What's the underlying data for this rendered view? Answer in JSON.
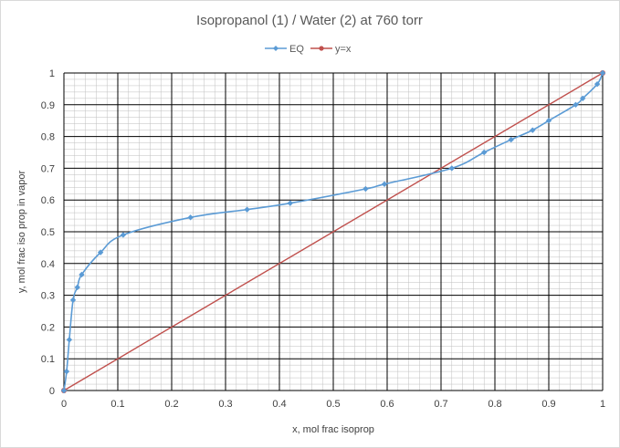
{
  "chart_data": {
    "type": "scatter",
    "title": "Isopropanol (1) / Water (2) at 760 torr",
    "xlabel": "x, mol frac isoprop",
    "ylabel": "y, mol frac iso prop in vapor",
    "xlim": [
      0,
      1
    ],
    "ylim": [
      0,
      1
    ],
    "x_ticks": [
      "0",
      "0.1",
      "0.2",
      "0.3",
      "0.4",
      "0.5",
      "0.6",
      "0.7",
      "0.8",
      "0.9",
      "1"
    ],
    "y_ticks": [
      "0",
      "0.1",
      "0.2",
      "0.3",
      "0.4",
      "0.5",
      "0.6",
      "0.7",
      "0.8",
      "0.9",
      "1"
    ],
    "grid": "major and minor",
    "legend_position": "top",
    "series": [
      {
        "name": "EQ",
        "color": "#5b9bd5",
        "marker": "diamond",
        "line": "smooth",
        "points": [
          [
            0,
            0
          ],
          [
            0.005,
            0.06
          ],
          [
            0.01,
            0.16
          ],
          [
            0.017,
            0.285
          ],
          [
            0.025,
            0.325
          ],
          [
            0.033,
            0.365
          ],
          [
            0.068,
            0.435
          ],
          [
            0.11,
            0.49
          ],
          [
            0.235,
            0.545
          ],
          [
            0.34,
            0.57
          ],
          [
            0.42,
            0.59
          ],
          [
            0.56,
            0.635
          ],
          [
            0.595,
            0.65
          ],
          [
            0.72,
            0.7
          ],
          [
            0.78,
            0.75
          ],
          [
            0.83,
            0.79
          ],
          [
            0.87,
            0.82
          ],
          [
            0.9,
            0.85
          ],
          [
            0.95,
            0.9
          ],
          [
            0.963,
            0.92
          ],
          [
            0.99,
            0.965
          ],
          [
            1,
            1
          ]
        ]
      },
      {
        "name": "y=x",
        "color": "#c0504d",
        "marker": "circle",
        "line": "straight",
        "points": [
          [
            0,
            0
          ],
          [
            1,
            1
          ]
        ]
      }
    ]
  }
}
